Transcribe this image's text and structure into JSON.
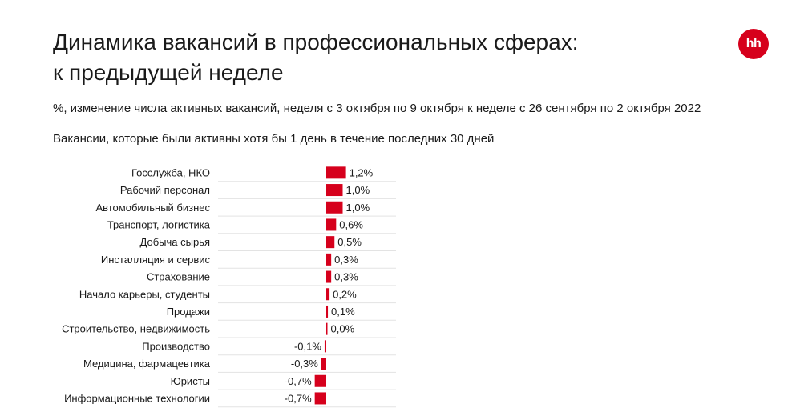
{
  "header": {
    "title_line1": "Динамика вакансий в профессиональных сферах:",
    "title_line2": "к предыдущей неделе",
    "subtitle": "%, изменение числа активных вакансий, неделя с 3 октября по 9 октября к неделе с 26 сентября по 2 октября 2022",
    "note": "Вакансии, которые были активны хотя бы 1 день в течение последних 30 дней",
    "logo_text": "hh"
  },
  "colors": {
    "bar": "#d6001c",
    "grid": "#e3e3e3",
    "brand": "#d6001c"
  },
  "chart_data": {
    "type": "bar",
    "orientation": "horizontal",
    "title": "",
    "xlabel": "",
    "ylabel": "",
    "grid": true,
    "categories": [
      "Госслужба, НКО",
      "Рабочий персонал",
      "Автомобильный бизнес",
      "Транспорт, логистика",
      "Добыча сырья",
      "Инсталляция и сервис",
      "Страхование",
      "Начало карьеры, студенты",
      "Продажи",
      "Строительство, недвижимость",
      "Производство",
      "Медицина, фармацевтика",
      "Юристы",
      "Информационные технологии"
    ],
    "values": [
      1.2,
      1.0,
      1.0,
      0.6,
      0.5,
      0.3,
      0.3,
      0.2,
      0.1,
      0.0,
      -0.1,
      -0.3,
      -0.7,
      -0.7
    ],
    "value_labels": [
      "1,2%",
      "1,0%",
      "1,0%",
      "0,6%",
      "0,5%",
      "0,3%",
      "0,3%",
      "0,2%",
      "0,1%",
      "0,0%",
      "-0,1%",
      "-0,3%",
      "-0,7%",
      "-0,7%"
    ]
  }
}
